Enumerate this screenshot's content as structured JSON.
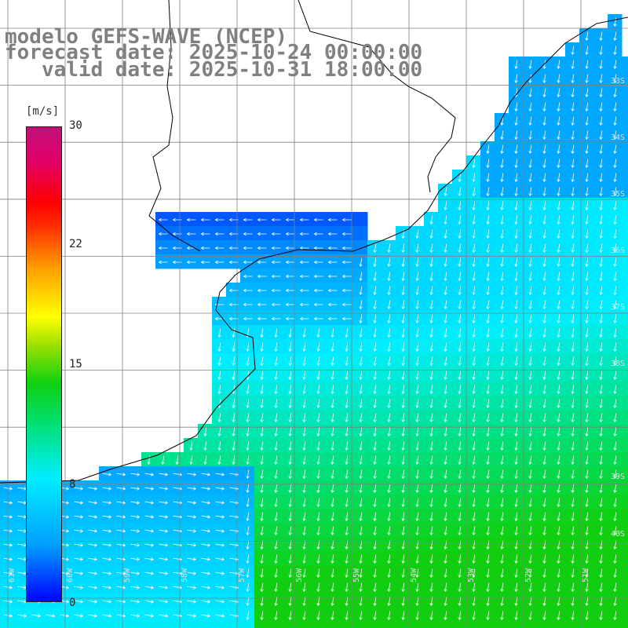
{
  "title": {
    "line1": "modelo GEFS-WAVE (NCEP)",
    "line2": "forecast date: 2025-10-24 00:00:00",
    "line3": "   valid date: 2025-10-31 18:00:00"
  },
  "colorbar": {
    "unit": "[m/s]",
    "ticks": [
      "30",
      "22",
      "15",
      "8",
      "0"
    ],
    "min": 0,
    "max": 30
  },
  "lon_labels": [
    "61W",
    "60W",
    "59W",
    "58W",
    "57W",
    "56W",
    "55W",
    "54W",
    "53W",
    "52W",
    "51W"
  ],
  "lat_labels": [
    "33S",
    "34S",
    "35S",
    "36S",
    "37S",
    "38S",
    "39S",
    "40S"
  ],
  "colors": {
    "low": "#0000ff",
    "mid": "#00eeff",
    "green": "#10d010",
    "high": "#c0107a",
    "arrow": "#ffffff",
    "coast": "#000000",
    "grid": "#808080"
  }
}
